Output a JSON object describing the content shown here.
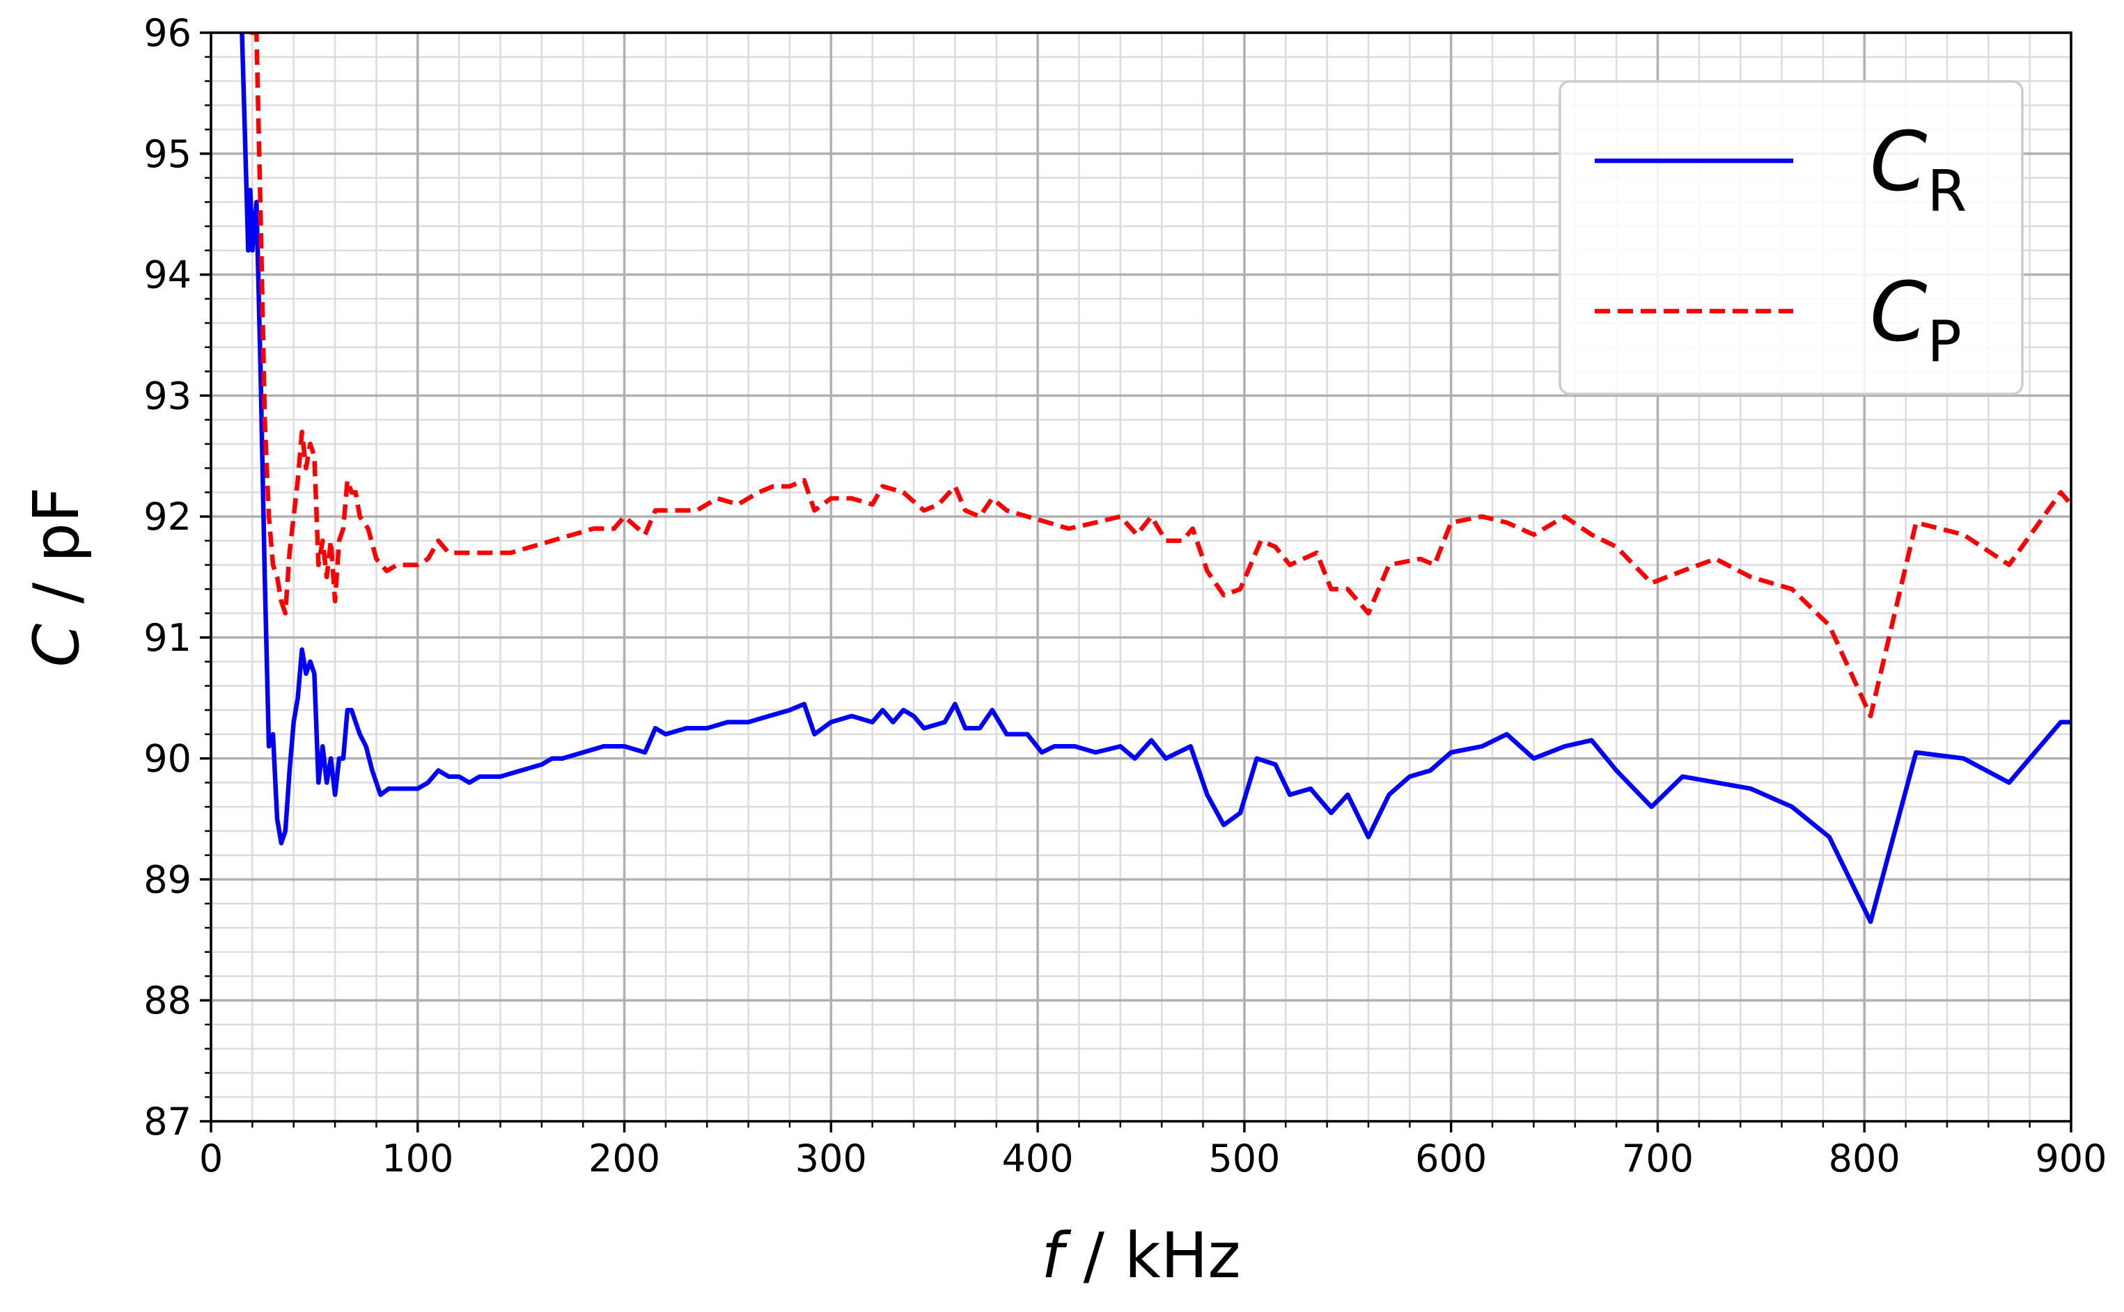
{
  "chart_data": {
    "type": "line",
    "xlabel": "f / kHz",
    "ylabel": "C / pF",
    "xlim": [
      0,
      900
    ],
    "xticks": [
      0,
      100,
      200,
      300,
      400,
      500,
      600,
      700,
      800,
      900
    ],
    "ylim": [
      87,
      96
    ],
    "yticks": [
      87,
      88,
      89,
      90,
      91,
      92,
      93,
      94,
      95,
      96
    ],
    "grid": true,
    "minor_grid": true,
    "minor_divisions": 5,
    "legend": "upper right",
    "series": [
      {
        "name": "CR",
        "color": "#0000ff",
        "style": "solid",
        "x": [
          15,
          17,
          18,
          19,
          20,
          22,
          24,
          26,
          28,
          30,
          32,
          34,
          36,
          38,
          40,
          42,
          44,
          46,
          48,
          50,
          52,
          54,
          56,
          58,
          60,
          62,
          64,
          66,
          68,
          70,
          72,
          75,
          78,
          82,
          86,
          90,
          95,
          100,
          105,
          110,
          115,
          120,
          125,
          130,
          140,
          150,
          160,
          165,
          170,
          180,
          190,
          200,
          210,
          215,
          220,
          230,
          240,
          250,
          260,
          270,
          280,
          287,
          292,
          300,
          310,
          320,
          325,
          330,
          335,
          340,
          345,
          355,
          360,
          365,
          372,
          378,
          385,
          395,
          402,
          408,
          418,
          428,
          440,
          447,
          455,
          462,
          474,
          482,
          490,
          498,
          506,
          515,
          522,
          532,
          542,
          550,
          560,
          570,
          580,
          590,
          600,
          615,
          627,
          640,
          655,
          668,
          680,
          697,
          712,
          745,
          765,
          783,
          803,
          825,
          848,
          870,
          895,
          900
        ],
        "values": [
          96,
          94.8,
          94.2,
          94.7,
          94.2,
          94.6,
          93.2,
          91.5,
          90.1,
          90.2,
          89.5,
          89.3,
          89.4,
          89.9,
          90.3,
          90.5,
          90.9,
          90.7,
          90.8,
          90.7,
          89.8,
          90.1,
          89.8,
          90.0,
          89.7,
          90.0,
          90.0,
          90.4,
          90.4,
          90.3,
          90.2,
          90.1,
          89.9,
          89.7,
          89.75,
          89.75,
          89.75,
          89.75,
          89.8,
          89.9,
          89.85,
          89.85,
          89.8,
          89.85,
          89.85,
          89.9,
          89.95,
          90.0,
          90.0,
          90.05,
          90.1,
          90.1,
          90.05,
          90.25,
          90.2,
          90.25,
          90.25,
          90.3,
          90.3,
          90.35,
          90.4,
          90.45,
          90.2,
          90.3,
          90.35,
          90.3,
          90.4,
          90.3,
          90.4,
          90.35,
          90.25,
          90.3,
          90.45,
          90.25,
          90.25,
          90.4,
          90.2,
          90.2,
          90.05,
          90.1,
          90.1,
          90.05,
          90.1,
          90.0,
          90.15,
          90.0,
          90.1,
          89.7,
          89.45,
          89.55,
          90.0,
          89.95,
          89.7,
          89.75,
          89.55,
          89.7,
          89.35,
          89.7,
          89.85,
          89.9,
          90.05,
          90.1,
          90.2,
          90.0,
          90.1,
          90.15,
          89.9,
          89.6,
          89.85,
          89.75,
          89.6,
          89.35,
          88.65,
          90.05,
          90.0,
          89.8,
          90.3,
          90.3
        ]
      },
      {
        "name": "CP",
        "color": "#ff0000",
        "style": "dashed",
        "x": [
          19,
          22,
          24,
          26,
          28,
          30,
          32,
          34,
          36,
          38,
          40,
          42,
          44,
          46,
          48,
          50,
          52,
          54,
          56,
          58,
          60,
          62,
          64,
          66,
          68,
          70,
          72,
          76,
          80,
          85,
          90,
          100,
          105,
          110,
          115,
          125,
          135,
          145,
          155,
          165,
          175,
          185,
          195,
          200,
          210,
          215,
          225,
          235,
          245,
          255,
          265,
          272,
          280,
          287,
          292,
          300,
          310,
          320,
          325,
          335,
          345,
          352,
          360,
          365,
          372,
          378,
          385,
          395,
          405,
          415,
          428,
          440,
          448,
          455,
          462,
          470,
          475,
          482,
          490,
          498,
          508,
          515,
          522,
          535,
          542,
          550,
          560,
          570,
          585,
          592,
          600,
          615,
          627,
          640,
          655,
          668,
          680,
          697,
          712,
          728,
          745,
          765,
          783,
          803,
          825,
          848,
          870,
          895,
          900
        ],
        "values": [
          96,
          96,
          94.5,
          92.8,
          92,
          91.6,
          91.5,
          91.3,
          91.2,
          91.7,
          92,
          92.3,
          92.7,
          92.4,
          92.6,
          92.5,
          91.6,
          91.8,
          91.5,
          91.8,
          91.3,
          91.8,
          91.9,
          92.3,
          92.2,
          92.2,
          92.0,
          91.9,
          91.65,
          91.55,
          91.6,
          91.6,
          91.65,
          91.8,
          91.7,
          91.7,
          91.7,
          91.7,
          91.75,
          91.8,
          91.85,
          91.9,
          91.9,
          92.0,
          91.85,
          92.05,
          92.05,
          92.05,
          92.15,
          92.1,
          92.2,
          92.25,
          92.25,
          92.3,
          92.05,
          92.15,
          92.15,
          92.1,
          92.25,
          92.2,
          92.05,
          92.1,
          92.25,
          92.05,
          92.0,
          92.15,
          92.05,
          92.0,
          91.95,
          91.9,
          91.95,
          92.0,
          91.85,
          92.0,
          91.8,
          91.8,
          91.9,
          91.55,
          91.35,
          91.4,
          91.8,
          91.75,
          91.6,
          91.7,
          91.4,
          91.4,
          91.2,
          91.6,
          91.65,
          91.6,
          91.95,
          92.0,
          91.95,
          91.85,
          92.0,
          91.85,
          91.75,
          91.45,
          91.55,
          91.65,
          91.5,
          91.4,
          91.1,
          90.35,
          91.95,
          91.85,
          91.6,
          92.2,
          92.1
        ]
      }
    ]
  }
}
